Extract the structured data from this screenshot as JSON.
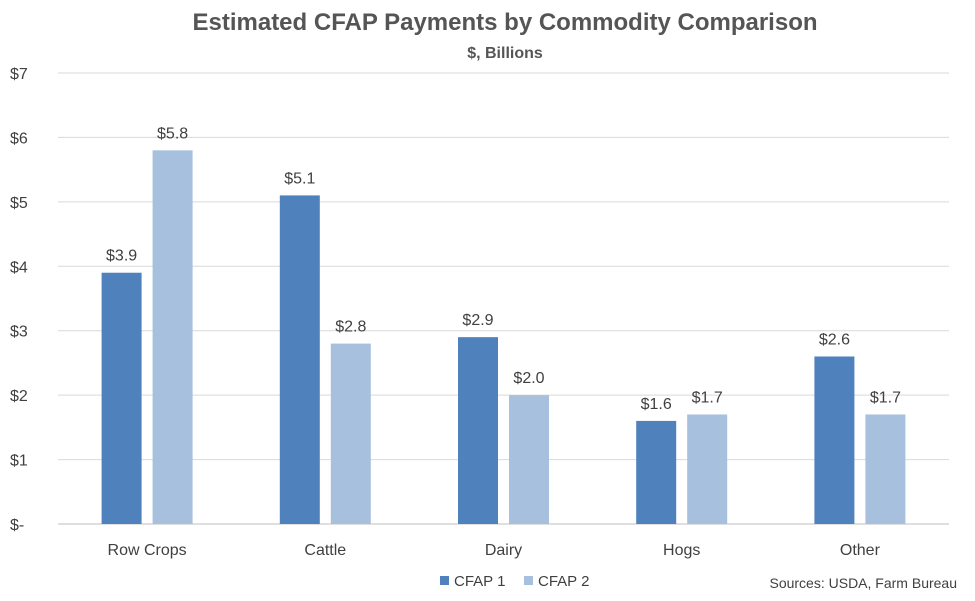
{
  "chart_data": {
    "type": "bar",
    "title": "Estimated CFAP Payments by Commodity Comparison",
    "subtitle": "$, Billions",
    "categories": [
      "Row Crops",
      "Cattle",
      "Dairy",
      "Hogs",
      "Other"
    ],
    "series": [
      {
        "name": "CFAP 1",
        "color": "#4F81BD",
        "values": [
          3.9,
          5.1,
          2.9,
          1.6,
          2.6
        ],
        "labels": [
          "$3.9",
          "$5.1",
          "$2.9",
          "$1.6",
          "$2.6"
        ]
      },
      {
        "name": "CFAP 2",
        "color": "#A7C0DE",
        "values": [
          5.8,
          2.8,
          2.0,
          1.7,
          1.7
        ],
        "labels": [
          "$5.8",
          "$2.8",
          "$2.0",
          "$1.7",
          "$1.7"
        ]
      }
    ],
    "ylim": [
      0,
      7
    ],
    "yticks": [
      {
        "value": 0,
        "label": "$-"
      },
      {
        "value": 1,
        "label": "$1"
      },
      {
        "value": 2,
        "label": "$2"
      },
      {
        "value": 3,
        "label": "$3"
      },
      {
        "value": 4,
        "label": "$4"
      },
      {
        "value": 5,
        "label": "$5"
      },
      {
        "value": 6,
        "label": "$6"
      },
      {
        "value": 7,
        "label": "$7"
      }
    ],
    "grid": true,
    "legend_position": "bottom",
    "source": "Sources: USDA, Farm Bureau"
  }
}
